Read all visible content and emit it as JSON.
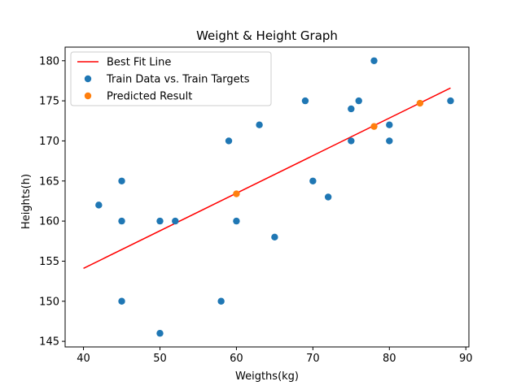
{
  "chart_data": {
    "type": "scatter",
    "title": "Weight & Height Graph",
    "xlabel": "Weigths(kg)",
    "ylabel": "Heights(h)",
    "xlim": [
      37.6,
      90.4
    ],
    "ylim": [
      144.3,
      181.7
    ],
    "xticks": [
      40,
      50,
      60,
      70,
      80,
      90
    ],
    "yticks": [
      145,
      150,
      155,
      160,
      165,
      170,
      175,
      180
    ],
    "grid": false,
    "legend_placement": "top-left",
    "series": [
      {
        "name": "Best Fit Line",
        "kind": "line",
        "color": "#ff0000",
        "points": [
          [
            40,
            154.1
          ],
          [
            88,
            176.6
          ]
        ]
      },
      {
        "name": "Train Data vs. Train Targets",
        "kind": "scatter",
        "color": "#1f77b4",
        "points": [
          [
            42,
            162
          ],
          [
            45,
            165
          ],
          [
            45,
            160
          ],
          [
            45,
            150
          ],
          [
            50,
            160
          ],
          [
            50,
            146
          ],
          [
            52,
            160
          ],
          [
            58,
            150
          ],
          [
            59,
            170
          ],
          [
            60,
            160
          ],
          [
            63,
            172
          ],
          [
            65,
            158
          ],
          [
            69,
            175
          ],
          [
            70,
            165
          ],
          [
            72,
            163
          ],
          [
            75,
            174
          ],
          [
            75,
            170
          ],
          [
            76,
            175
          ],
          [
            78,
            180
          ],
          [
            80,
            172
          ],
          [
            80,
            170
          ],
          [
            88,
            175
          ]
        ]
      },
      {
        "name": "Predicted Result",
        "kind": "scatter",
        "color": "#ff7f0e",
        "points": [
          [
            60,
            163.4
          ],
          [
            78,
            171.8
          ],
          [
            84,
            174.7
          ]
        ]
      }
    ]
  }
}
